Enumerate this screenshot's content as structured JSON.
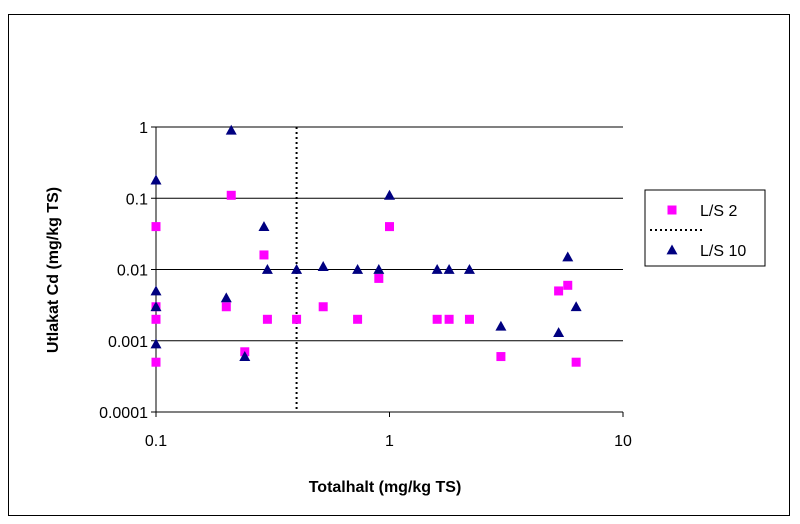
{
  "chart_data": {
    "type": "scatter",
    "xlabel": "Totalhalt (mg/kg TS)",
    "ylabel": "Utlakat Cd (mg/kg TS)",
    "xscale": "log",
    "yscale": "log",
    "xlim": [
      0.1,
      10
    ],
    "ylim": [
      0.0001,
      1
    ],
    "x_ticks": [
      "0.1",
      "1",
      "10"
    ],
    "y_ticks": [
      "0.0001",
      "0.001",
      "0.01",
      "0.1",
      "1"
    ],
    "grid": "horizontal",
    "legend_position": "right",
    "reference_line": {
      "type": "vertical-dotted",
      "x": 0.4,
      "color": "#000000"
    },
    "legend": [
      {
        "label": "L/S 2",
        "marker": "square",
        "color": "#FF00FF"
      },
      {
        "label": "",
        "marker": "dotted-line",
        "color": "#000000"
      },
      {
        "label": "L/S 10",
        "marker": "triangle",
        "color": "#000080"
      }
    ],
    "series": [
      {
        "name": "L/S 2",
        "marker": "square",
        "color": "#FF00FF",
        "points": [
          [
            0.1,
            0.04
          ],
          [
            0.1,
            0.003
          ],
          [
            0.1,
            0.002
          ],
          [
            0.1,
            0.0005
          ],
          [
            0.2,
            0.003
          ],
          [
            0.21,
            0.11
          ],
          [
            0.24,
            0.0007
          ],
          [
            0.29,
            0.016
          ],
          [
            0.3,
            0.002
          ],
          [
            0.4,
            0.002
          ],
          [
            0.52,
            0.003
          ],
          [
            0.73,
            0.002
          ],
          [
            0.9,
            0.0075
          ],
          [
            1.0,
            0.04
          ],
          [
            1.6,
            0.002
          ],
          [
            1.8,
            0.002
          ],
          [
            2.2,
            0.002
          ],
          [
            3.0,
            0.0006
          ],
          [
            5.3,
            0.005
          ],
          [
            5.8,
            0.006
          ],
          [
            6.3,
            0.0005
          ]
        ]
      },
      {
        "name": "L/S 10",
        "marker": "triangle",
        "color": "#000080",
        "points": [
          [
            0.1,
            0.18
          ],
          [
            0.1,
            0.005
          ],
          [
            0.1,
            0.003
          ],
          [
            0.1,
            0.0009
          ],
          [
            0.2,
            0.004
          ],
          [
            0.21,
            0.9
          ],
          [
            0.24,
            0.0006
          ],
          [
            0.29,
            0.04
          ],
          [
            0.3,
            0.01
          ],
          [
            0.4,
            0.01
          ],
          [
            0.52,
            0.011
          ],
          [
            0.73,
            0.01
          ],
          [
            0.9,
            0.01
          ],
          [
            1.0,
            0.11
          ],
          [
            1.6,
            0.01
          ],
          [
            1.8,
            0.01
          ],
          [
            2.2,
            0.01
          ],
          [
            3.0,
            0.0016
          ],
          [
            5.3,
            0.0013
          ],
          [
            5.8,
            0.015
          ],
          [
            6.3,
            0.003
          ]
        ]
      }
    ]
  }
}
